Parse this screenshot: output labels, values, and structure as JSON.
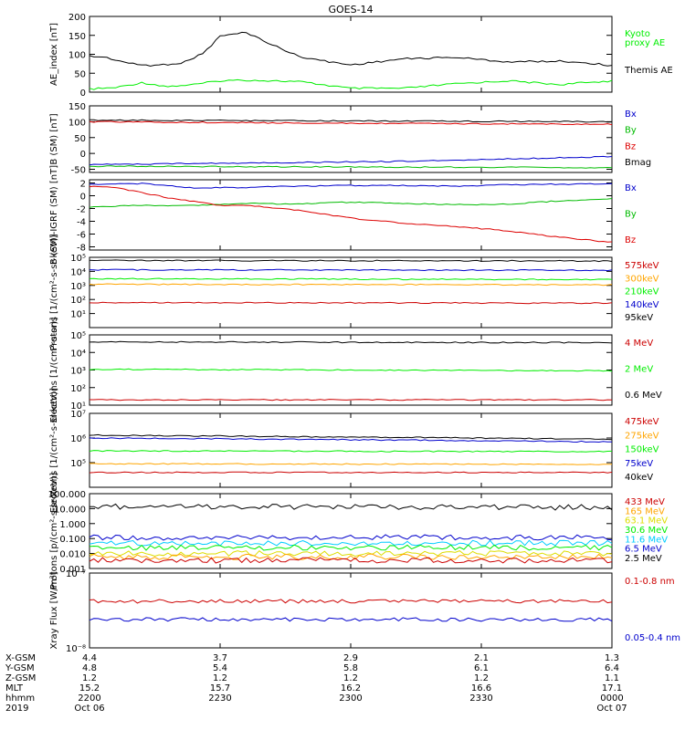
{
  "chart_data": {
    "title": "GOES-14",
    "x_time": {
      "start": "2019-10-06 22:00",
      "end": "2019-10-07 00:00",
      "ticks": [
        {
          "hhmm": "2200",
          "date": "Oct 06",
          "xgsm": "4.4",
          "ygsm": "4.8",
          "zgsm": "1.2",
          "mlt": "15.2"
        },
        {
          "hhmm": "2230",
          "date": "",
          "xgsm": "3.7",
          "ygsm": "5.4",
          "zgsm": "1.2",
          "mlt": "15.7"
        },
        {
          "hhmm": "2300",
          "date": "",
          "xgsm": "2.9",
          "ygsm": "5.8",
          "zgsm": "1.2",
          "mlt": "16.2"
        },
        {
          "hhmm": "2330",
          "date": "",
          "xgsm": "2.1",
          "ygsm": "6.1",
          "zgsm": "1.2",
          "mlt": "16.6"
        },
        {
          "hhmm": "0000",
          "date": "Oct 07",
          "xgsm": "1.3",
          "ygsm": "6.4",
          "zgsm": "1.1",
          "mlt": "17.1"
        }
      ],
      "row_labels": [
        "X-GSM",
        "Y-GSM",
        "Z-GSM",
        "MLT",
        "hhmm",
        "2019"
      ]
    },
    "panels": [
      {
        "id": "ae",
        "ylabel": "AE_index [nT]",
        "scale": "linear",
        "ylim": [
          0,
          200
        ],
        "yticks": [
          0,
          50,
          100,
          150,
          200
        ],
        "ytick_labels": [
          "0",
          "50",
          "100",
          "150",
          "200"
        ],
        "series": [
          {
            "name": "Kyoto proxy AE",
            "color": "#00ee00",
            "x": [
              0,
              0.05,
              0.1,
              0.15,
              0.2,
              0.25,
              0.3,
              0.4,
              0.5,
              0.6,
              0.7,
              0.8,
              0.9,
              1.0
            ],
            "y": [
              8,
              12,
              25,
              15,
              20,
              30,
              32,
              28,
              10,
              10,
              22,
              30,
              20,
              30
            ]
          },
          {
            "name": "Themis AE",
            "color": "#000000",
            "x": [
              0,
              0.03,
              0.08,
              0.12,
              0.18,
              0.22,
              0.25,
              0.3,
              0.35,
              0.4,
              0.45,
              0.5,
              0.6,
              0.7,
              0.8,
              0.9,
              0.95,
              1.0
            ],
            "y": [
              95,
              92,
              75,
              70,
              78,
              105,
              148,
              158,
              125,
              95,
              82,
              72,
              88,
              92,
              80,
              82,
              78,
              70
            ]
          }
        ],
        "legend_text": [
          {
            "text": "Kyoto",
            "color": "#00ee00"
          },
          {
            "text": "proxy AE",
            "color": "#00ee00"
          },
          {
            "text": "Themis AE",
            "color": "#000000"
          }
        ]
      },
      {
        "id": "b",
        "ylabel": "B (SM) [nT]",
        "scale": "linear",
        "ylim": [
          -60,
          150
        ],
        "yticks": [
          -50,
          0,
          50,
          100,
          150
        ],
        "ytick_labels": [
          "-50",
          "0",
          "50",
          "100",
          "150"
        ],
        "series": [
          {
            "name": "Bmag",
            "color": "#000000",
            "x": [
              0,
              1
            ],
            "y": [
              105,
              100
            ]
          },
          {
            "name": "Bz",
            "color": "#dd0000",
            "x": [
              0,
              0.5,
              1
            ],
            "y": [
              100,
              95,
              92
            ]
          },
          {
            "name": "Bx",
            "color": "#0000cc",
            "x": [
              0,
              0.3,
              0.6,
              1
            ],
            "y": [
              -35,
              -30,
              -25,
              -10
            ]
          },
          {
            "name": "By",
            "color": "#00bb00",
            "x": [
              0,
              1
            ],
            "y": [
              -40,
              -45
            ]
          }
        ],
        "legend_text": [
          {
            "text": "Bx",
            "color": "#0000cc"
          },
          {
            "text": "By",
            "color": "#00bb00"
          },
          {
            "text": "Bz",
            "color": "#dd0000"
          },
          {
            "text": "Bmag",
            "color": "#000000"
          }
        ]
      },
      {
        "id": "bdiff",
        "ylabel": "B (SM)-IGRF (SM) [nT]",
        "scale": "linear",
        "ylim": [
          -8.5,
          2.5
        ],
        "yticks": [
          -8,
          -6,
          -4,
          -2,
          0,
          2
        ],
        "ytick_labels": [
          "-8",
          "-6",
          "-4",
          "-2",
          "0",
          "2"
        ],
        "series": [
          {
            "name": "Bx",
            "color": "#0000cc",
            "x": [
              0,
              0.1,
              0.2,
              0.3,
              0.4,
              0.5,
              0.6,
              0.7,
              0.8,
              0.9,
              1.0
            ],
            "y": [
              1.8,
              1.9,
              1.2,
              1.3,
              1.5,
              1.6,
              1.6,
              1.5,
              1.7,
              1.8,
              1.9
            ]
          },
          {
            "name": "By",
            "color": "#00bb00",
            "x": [
              0,
              0.1,
              0.2,
              0.3,
              0.4,
              0.5,
              0.6,
              0.7,
              0.8,
              0.9,
              1.0
            ],
            "y": [
              -1.8,
              -1.5,
              -1.5,
              -1.2,
              -1.3,
              -1.0,
              -1.2,
              -1.4,
              -1.3,
              -0.8,
              -0.5
            ]
          },
          {
            "name": "Bz",
            "color": "#dd0000",
            "x": [
              0,
              0.05,
              0.15,
              0.25,
              0.3,
              0.4,
              0.5,
              0.6,
              0.7,
              0.8,
              0.9,
              1.0
            ],
            "y": [
              1.5,
              1.3,
              -0.3,
              -1.5,
              -1.5,
              -2.3,
              -3.5,
              -4.3,
              -4.8,
              -5.5,
              -6.5,
              -7.3
            ]
          }
        ],
        "legend_text": [
          {
            "text": "Bx",
            "color": "#0000cc"
          },
          {
            "text": "By",
            "color": "#00bb00"
          },
          {
            "text": "Bz",
            "color": "#dd0000"
          }
        ]
      },
      {
        "id": "protons_low",
        "ylabel": "Protons [1/(cm²-s-sr-keV)]",
        "scale": "log",
        "ylim": [
          1,
          100000
        ],
        "yticks": [
          10,
          100,
          1000,
          10000,
          100000
        ],
        "ytick_labels": [
          "10¹",
          "10²",
          "10³",
          "10⁴",
          "10⁵"
        ],
        "series": [
          {
            "name": "575keV",
            "color": "#cc0000",
            "x": [
              0,
              1
            ],
            "y": [
              60,
              55
            ]
          },
          {
            "name": "300keV",
            "color": "#ffa500",
            "x": [
              0,
              1
            ],
            "y": [
              1200,
              1100
            ]
          },
          {
            "name": "210keV",
            "color": "#00ee00",
            "x": [
              0,
              1
            ],
            "y": [
              3000,
              2600
            ]
          },
          {
            "name": "140keV",
            "color": "#0000cc",
            "x": [
              0,
              1
            ],
            "y": [
              13000,
              12000
            ]
          },
          {
            "name": "95keV",
            "color": "#000000",
            "x": [
              0,
              1
            ],
            "y": [
              60000,
              55000
            ]
          }
        ],
        "legend_text": [
          {
            "text": "575keV",
            "color": "#cc0000"
          },
          {
            "text": "300keV",
            "color": "#ffa500"
          },
          {
            "text": "210keV",
            "color": "#00ee00"
          },
          {
            "text": "140keV",
            "color": "#0000cc"
          },
          {
            "text": "95keV",
            "color": "#000000"
          }
        ]
      },
      {
        "id": "electrons_mev",
        "ylabel": "Electrons [1/(cm²-s-sr)]",
        "scale": "log",
        "ylim": [
          10,
          100000
        ],
        "yticks": [
          10,
          100,
          1000,
          10000,
          100000
        ],
        "ytick_labels": [
          "10¹",
          "10²",
          "10³",
          "10⁴",
          "10⁵"
        ],
        "series": [
          {
            "name": "0.6 MeV",
            "color": "#000000",
            "x": [
              0,
              1
            ],
            "y": [
              40000,
              36000
            ]
          },
          {
            "name": "2 MeV",
            "color": "#00ee00",
            "x": [
              0,
              1
            ],
            "y": [
              1100,
              900
            ]
          },
          {
            "name": "4 MeV",
            "color": "#cc0000",
            "x": [
              0,
              1
            ],
            "y": [
              20,
              20
            ]
          }
        ],
        "legend_text": [
          {
            "text": "4 MeV",
            "color": "#cc0000"
          },
          {
            "text": "2 MeV",
            "color": "#00ee00"
          },
          {
            "text": "0.6 MeV",
            "color": "#000000"
          }
        ]
      },
      {
        "id": "electrons_kev",
        "ylabel": "Electrons [1/(cm²-s-sr-keV)]",
        "scale": "log",
        "ylim": [
          10000,
          10000000
        ],
        "yticks": [
          100000,
          1000000,
          10000000
        ],
        "ytick_labels": [
          "10⁵",
          "10⁶",
          "10⁷"
        ],
        "series": [
          {
            "name": "40keV",
            "color": "#000000",
            "x": [
              0,
              0.5,
              1
            ],
            "y": [
              1300000,
              1100000,
              900000
            ]
          },
          {
            "name": "75keV",
            "color": "#0000cc",
            "x": [
              0,
              0.5,
              1
            ],
            "y": [
              1000000,
              850000,
              700000
            ]
          },
          {
            "name": "150keV",
            "color": "#00ee00",
            "x": [
              0,
              1
            ],
            "y": [
              300000,
              280000
            ]
          },
          {
            "name": "275keV",
            "color": "#ffa500",
            "x": [
              0,
              1
            ],
            "y": [
              90000,
              85000
            ]
          },
          {
            "name": "475keV",
            "color": "#cc0000",
            "x": [
              0,
              1
            ],
            "y": [
              40000,
              40000
            ]
          }
        ],
        "legend_text": [
          {
            "text": "475keV",
            "color": "#cc0000"
          },
          {
            "text": "275keV",
            "color": "#ffa500"
          },
          {
            "text": "150keV",
            "color": "#00ee00"
          },
          {
            "text": "75keV",
            "color": "#0000cc"
          },
          {
            "text": "40keV",
            "color": "#000000"
          }
        ]
      },
      {
        "id": "protons_mev",
        "ylabel": "Protons [p/(cm²-s-sr-keV)]",
        "scale": "log",
        "ylim": [
          0.001,
          100
        ],
        "yticks": [
          0.001,
          0.01,
          0.1,
          1,
          10,
          100
        ],
        "ytick_labels": [
          "0.001",
          "0.010",
          "0.100",
          "1.000",
          "10.000",
          "100.000"
        ],
        "series": [
          {
            "name": "2.5 MeV",
            "color": "#000000",
            "x": [
              0,
              1
            ],
            "y": [
              14,
              12
            ]
          },
          {
            "name": "6.5 MeV",
            "color": "#0000cc",
            "x": [
              0,
              1
            ],
            "y": [
              0.12,
              0.12
            ]
          },
          {
            "name": "11.6 MeV",
            "color": "#00ccff",
            "x": [
              0,
              1
            ],
            "y": [
              0.05,
              0.05
            ]
          },
          {
            "name": "30.6 MeV",
            "color": "#00ee00",
            "x": [
              0,
              1
            ],
            "y": [
              0.025,
              0.025
            ]
          },
          {
            "name": "63.1 MeV",
            "color": "#dddd00",
            "x": [
              0,
              1
            ],
            "y": [
              0.01,
              0.01
            ]
          },
          {
            "name": "165 MeV",
            "color": "#ffa500",
            "x": [
              0,
              1
            ],
            "y": [
              0.006,
              0.006
            ]
          },
          {
            "name": "433 MeV",
            "color": "#cc0000",
            "x": [
              0,
              1
            ],
            "y": [
              0.0035,
              0.0035
            ]
          }
        ],
        "legend_text": [
          {
            "text": "433 MeV",
            "color": "#cc0000"
          },
          {
            "text": "165 MeV",
            "color": "#ffa500"
          },
          {
            "text": "63.1 MeV",
            "color": "#dddd00"
          },
          {
            "text": "30.6 MeV",
            "color": "#00ee00"
          },
          {
            "text": "11.6 MeV",
            "color": "#00ccff"
          },
          {
            "text": "6.5 MeV",
            "color": "#0000cc"
          },
          {
            "text": "2.5 MeV",
            "color": "#000000"
          }
        ]
      },
      {
        "id": "xray",
        "ylabel": "Xray Flux [W/m²]",
        "scale": "log",
        "ylim": [
          1e-08,
          1e-07
        ],
        "yticks": [
          1e-08,
          1e-07
        ],
        "ytick_labels": [
          "10⁻⁸",
          "10⁻⁷"
        ],
        "series": [
          {
            "name": "0.1-0.8 nm",
            "color": "#cc0000",
            "x": [
              0,
              1
            ],
            "y": [
              4.2e-08,
              4.2e-08
            ]
          },
          {
            "name": "0.05-0.4 nm",
            "color": "#0000cc",
            "x": [
              0,
              1
            ],
            "y": [
              2.4e-08,
              2.4e-08
            ]
          }
        ],
        "legend_text": [
          {
            "text": "0.1-0.8 nm",
            "color": "#cc0000"
          },
          {
            "text": "0.05-0.4 nm",
            "color": "#0000cc"
          }
        ]
      }
    ]
  }
}
